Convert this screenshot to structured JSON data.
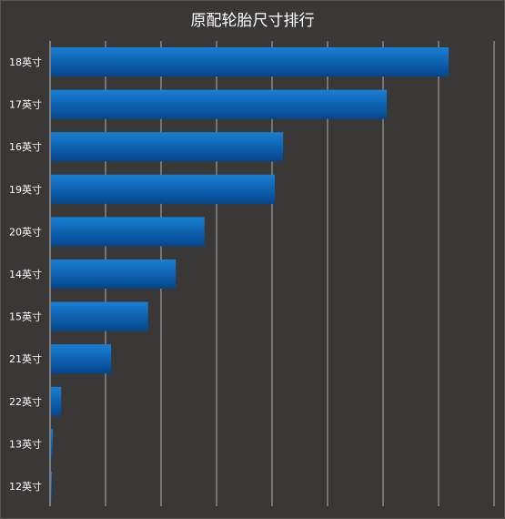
{
  "chart_data": {
    "type": "bar",
    "orientation": "horizontal",
    "title": "原配轮胎尺寸排行",
    "categories": [
      "18英寸",
      "17英寸",
      "16英寸",
      "19英寸",
      "20英寸",
      "14英寸",
      "15英寸",
      "21英寸",
      "22英寸",
      "13英寸",
      "12英寸"
    ],
    "values": [
      4300,
      3630,
      2510,
      2420,
      1660,
      1350,
      1050,
      650,
      110,
      20,
      10
    ],
    "xlim": [
      0,
      4800
    ],
    "grid": true,
    "colors": {
      "background": "#3a3737",
      "bar_top": "#1a7fd4",
      "bar_bottom": "#04468d",
      "grid": "#d8d8d8"
    }
  }
}
